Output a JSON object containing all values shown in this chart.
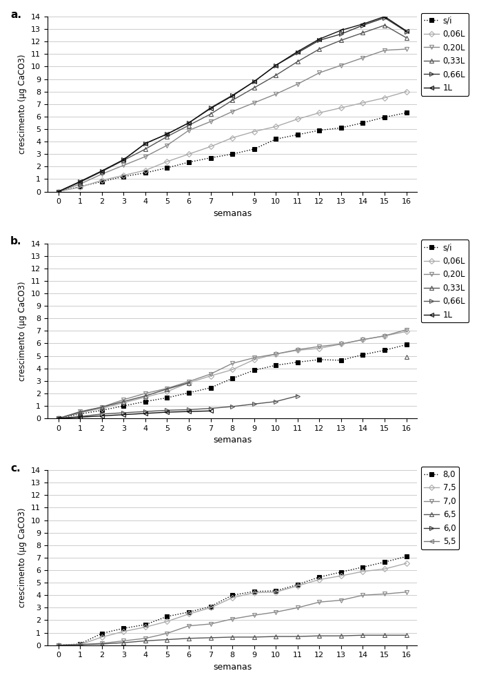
{
  "panel_a": {
    "title": "a.",
    "series": [
      {
        "label": "s/i",
        "color": "#000000",
        "linestyle": "dotted",
        "marker": "s",
        "markercolor": "#000000",
        "markeredgecolor": "#000000",
        "x": [
          0,
          1,
          2,
          3,
          4,
          5,
          6,
          7,
          8,
          9,
          10,
          11,
          12,
          13,
          14,
          15,
          16
        ],
        "y": [
          0,
          0.4,
          0.8,
          1.2,
          1.5,
          1.9,
          2.35,
          2.7,
          3.0,
          3.4,
          4.2,
          4.55,
          4.9,
          5.1,
          5.5,
          5.95,
          6.3
        ]
      },
      {
        "label": "0,06L",
        "color": "#aaaaaa",
        "linestyle": "solid",
        "marker": "D",
        "markercolor": "none",
        "markeredgecolor": "#aaaaaa",
        "x": [
          0,
          1,
          2,
          3,
          4,
          5,
          6,
          7,
          8,
          9,
          10,
          11,
          12,
          13,
          14,
          15,
          16
        ],
        "y": [
          0,
          0.35,
          0.9,
          1.3,
          1.7,
          2.4,
          3.0,
          3.6,
          4.3,
          4.8,
          5.2,
          5.8,
          6.3,
          6.7,
          7.1,
          7.5,
          8.0
        ]
      },
      {
        "label": "0,20L",
        "color": "#888888",
        "linestyle": "solid",
        "marker": "v",
        "markercolor": "none",
        "markeredgecolor": "#888888",
        "x": [
          0,
          1,
          2,
          3,
          4,
          5,
          6,
          7,
          8,
          9,
          10,
          11,
          12,
          13,
          14,
          15,
          16
        ],
        "y": [
          0,
          0.6,
          1.4,
          2.1,
          2.8,
          3.7,
          4.9,
          5.6,
          6.4,
          7.1,
          7.8,
          8.6,
          9.5,
          10.1,
          10.7,
          11.3,
          11.4
        ]
      },
      {
        "label": "0,33L",
        "color": "#555555",
        "linestyle": "solid",
        "marker": "^",
        "markercolor": "none",
        "markeredgecolor": "#555555",
        "x": [
          0,
          1,
          2,
          3,
          4,
          5,
          6,
          7,
          8,
          9,
          10,
          11,
          12,
          13,
          14,
          15,
          16
        ],
        "y": [
          0,
          0.75,
          1.6,
          2.5,
          3.4,
          4.4,
          5.3,
          6.2,
          7.3,
          8.3,
          9.3,
          10.4,
          11.4,
          12.1,
          12.7,
          13.3,
          12.3
        ]
      },
      {
        "label": "0,66L",
        "color": "#333333",
        "linestyle": "solid",
        "marker": ">",
        "markercolor": "none",
        "markeredgecolor": "#333333",
        "x": [
          0,
          1,
          2,
          3,
          4,
          5,
          6,
          7,
          8,
          9,
          10,
          11,
          12,
          13,
          14,
          15,
          16
        ],
        "y": [
          0,
          0.8,
          1.65,
          2.55,
          3.85,
          4.6,
          5.5,
          6.7,
          7.7,
          8.8,
          10.1,
          11.1,
          12.1,
          12.6,
          13.3,
          13.9,
          12.8
        ]
      },
      {
        "label": "1L",
        "color": "#111111",
        "linestyle": "solid",
        "marker": "<",
        "markercolor": "none",
        "markeredgecolor": "#111111",
        "x": [
          0,
          1,
          2,
          3,
          4,
          5,
          6,
          7,
          8,
          9,
          10,
          11,
          12,
          13,
          14,
          15,
          16
        ],
        "y": [
          0,
          0.8,
          1.65,
          2.55,
          3.85,
          4.6,
          5.5,
          6.65,
          7.65,
          8.8,
          10.1,
          11.2,
          12.2,
          12.9,
          13.4,
          14.0,
          12.85
        ]
      }
    ]
  },
  "panel_b": {
    "title": "b.",
    "series": [
      {
        "label": "s/i",
        "color": "#000000",
        "linestyle": "dotted",
        "marker": "s",
        "markercolor": "#000000",
        "markeredgecolor": "#000000",
        "x": [
          0,
          1,
          2,
          3,
          4,
          5,
          6,
          7,
          8,
          9,
          10,
          11,
          12,
          13,
          14,
          15,
          16
        ],
        "y": [
          0,
          0.35,
          0.65,
          1.0,
          1.35,
          1.65,
          2.05,
          2.45,
          3.2,
          3.85,
          4.25,
          4.5,
          4.7,
          4.65,
          5.1,
          5.45,
          5.9
        ]
      },
      {
        "label": "0,06L",
        "color": "#aaaaaa",
        "linestyle": "solid",
        "marker": "D",
        "markercolor": "none",
        "markeredgecolor": "#aaaaaa",
        "x": [
          0,
          1,
          2,
          3,
          4,
          5,
          6,
          7,
          8,
          9,
          10,
          11,
          12,
          13,
          14,
          15,
          16
        ],
        "y": [
          0,
          0.45,
          0.8,
          1.25,
          1.7,
          2.15,
          2.85,
          3.4,
          3.9,
          4.7,
          5.15,
          5.45,
          5.6,
          5.95,
          6.3,
          6.6,
          6.95
        ]
      },
      {
        "label": "0,20L",
        "color": "#888888",
        "linestyle": "solid",
        "marker": "v",
        "markercolor": "none",
        "markeredgecolor": "#888888",
        "x": [
          0,
          1,
          2,
          3,
          4,
          5,
          6,
          7,
          8,
          9,
          10,
          11,
          12,
          13,
          14,
          15,
          16
        ],
        "y": [
          0,
          0.55,
          0.9,
          1.5,
          2.0,
          2.4,
          2.95,
          3.55,
          4.4,
          4.85,
          5.15,
          5.5,
          5.75,
          5.95,
          6.3,
          6.6,
          7.1
        ]
      },
      {
        "label": "0,33L",
        "color": "#555555",
        "linestyle": "solid",
        "marker": "^",
        "markercolor": "none",
        "markeredgecolor": "#555555",
        "x": [
          0,
          1,
          2,
          3,
          4,
          5,
          6,
          7,
          8,
          9,
          10,
          11,
          12,
          13,
          14,
          15,
          16
        ],
        "y": [
          0,
          0.5,
          0.9,
          1.35,
          1.8,
          2.35,
          2.85,
          null,
          null,
          null,
          null,
          null,
          null,
          null,
          null,
          null,
          4.9
        ]
      },
      {
        "label": "0,66L",
        "color": "#555555",
        "linestyle": "solid",
        "marker": ">",
        "markercolor": "none",
        "markeredgecolor": "#555555",
        "x": [
          0,
          1,
          2,
          3,
          4,
          5,
          6,
          7,
          8,
          9,
          10,
          11
        ],
        "y": [
          0,
          0.15,
          0.35,
          0.45,
          0.55,
          0.65,
          0.7,
          0.8,
          0.95,
          1.15,
          1.35,
          1.8
        ]
      },
      {
        "label": "1L",
        "color": "#111111",
        "linestyle": "solid",
        "marker": "<",
        "markercolor": "none",
        "markeredgecolor": "#111111",
        "x": [
          0,
          1,
          2,
          3,
          4,
          5,
          6,
          7
        ],
        "y": [
          0,
          0.1,
          0.2,
          0.3,
          0.4,
          0.5,
          0.55,
          0.6
        ]
      }
    ]
  },
  "panel_c": {
    "title": "c.",
    "series": [
      {
        "label": "8,0",
        "color": "#000000",
        "linestyle": "dotted",
        "marker": "s",
        "markercolor": "#000000",
        "markeredgecolor": "#000000",
        "x": [
          0,
          1,
          2,
          3,
          4,
          5,
          6,
          7,
          8,
          9,
          10,
          11,
          12,
          13,
          14,
          15,
          16
        ],
        "y": [
          0,
          0.1,
          0.95,
          1.35,
          1.65,
          2.3,
          2.65,
          3.1,
          4.0,
          4.3,
          4.35,
          4.85,
          5.45,
          5.85,
          6.25,
          6.65,
          7.1
        ]
      },
      {
        "label": "7,5",
        "color": "#aaaaaa",
        "linestyle": "solid",
        "marker": "D",
        "markercolor": "none",
        "markeredgecolor": "#aaaaaa",
        "x": [
          0,
          1,
          2,
          3,
          4,
          5,
          6,
          7,
          8,
          9,
          10,
          11,
          12,
          13,
          14,
          15,
          16
        ],
        "y": [
          0,
          0.05,
          0.65,
          1.1,
          1.45,
          1.9,
          2.5,
          3.0,
          3.8,
          4.2,
          4.25,
          4.75,
          5.25,
          5.55,
          5.9,
          6.1,
          6.55
        ]
      },
      {
        "label": "7,0",
        "color": "#888888",
        "linestyle": "solid",
        "marker": "v",
        "markercolor": "none",
        "markeredgecolor": "#888888",
        "x": [
          0,
          1,
          2,
          3,
          4,
          5,
          6,
          7,
          8,
          9,
          10,
          11,
          12,
          13,
          14,
          15,
          16
        ],
        "y": [
          0,
          0.05,
          0.15,
          0.35,
          0.55,
          0.95,
          1.55,
          1.7,
          2.1,
          2.4,
          2.65,
          3.0,
          3.45,
          3.6,
          4.0,
          4.1,
          4.25
        ]
      },
      {
        "label": "6,5",
        "color": "#555555",
        "linestyle": "solid",
        "marker": "^",
        "markercolor": "none",
        "markeredgecolor": "#555555",
        "x": [
          0,
          1,
          2,
          3,
          4,
          5,
          6,
          7,
          8,
          9,
          10,
          11,
          12,
          13,
          14,
          15,
          16
        ],
        "y": [
          0,
          0.05,
          0.1,
          0.2,
          0.35,
          0.45,
          0.55,
          0.6,
          0.65,
          0.65,
          0.7,
          0.7,
          0.75,
          0.75,
          0.8,
          0.8,
          0.8
        ]
      },
      {
        "label": "6,0",
        "color": "#333333",
        "linestyle": "solid",
        "marker": ">",
        "markercolor": "none",
        "markeredgecolor": "#333333",
        "x": [],
        "y": []
      },
      {
        "label": "5,5",
        "color": "#777777",
        "linestyle": "solid",
        "marker": "<",
        "markercolor": "none",
        "markeredgecolor": "#777777",
        "x": [],
        "y": []
      }
    ]
  },
  "ylim": [
    0,
    14
  ],
  "yticks": [
    0,
    1,
    2,
    3,
    4,
    5,
    6,
    7,
    8,
    9,
    10,
    11,
    12,
    13,
    14
  ],
  "xticks": [
    0,
    1,
    2,
    3,
    4,
    5,
    6,
    7,
    8,
    9,
    10,
    11,
    12,
    13,
    14,
    15,
    16
  ],
  "xtick_labels_a": [
    "0",
    "1",
    "2",
    "3",
    "4",
    "5",
    "6",
    "7",
    "",
    "9",
    "10",
    "11",
    "12",
    "13",
    "14",
    "15",
    "16"
  ],
  "xtick_labels_bc": [
    "0",
    "1",
    "2",
    "3",
    "4",
    "5",
    "6",
    "7",
    "8",
    "9",
    "10",
    "11",
    "12",
    "13",
    "14",
    "15",
    "16"
  ],
  "xlabel": "semanas",
  "ylabel": "crescimento (µg CaCO3)",
  "background_color": "#ffffff",
  "grid_color": "#cccccc"
}
